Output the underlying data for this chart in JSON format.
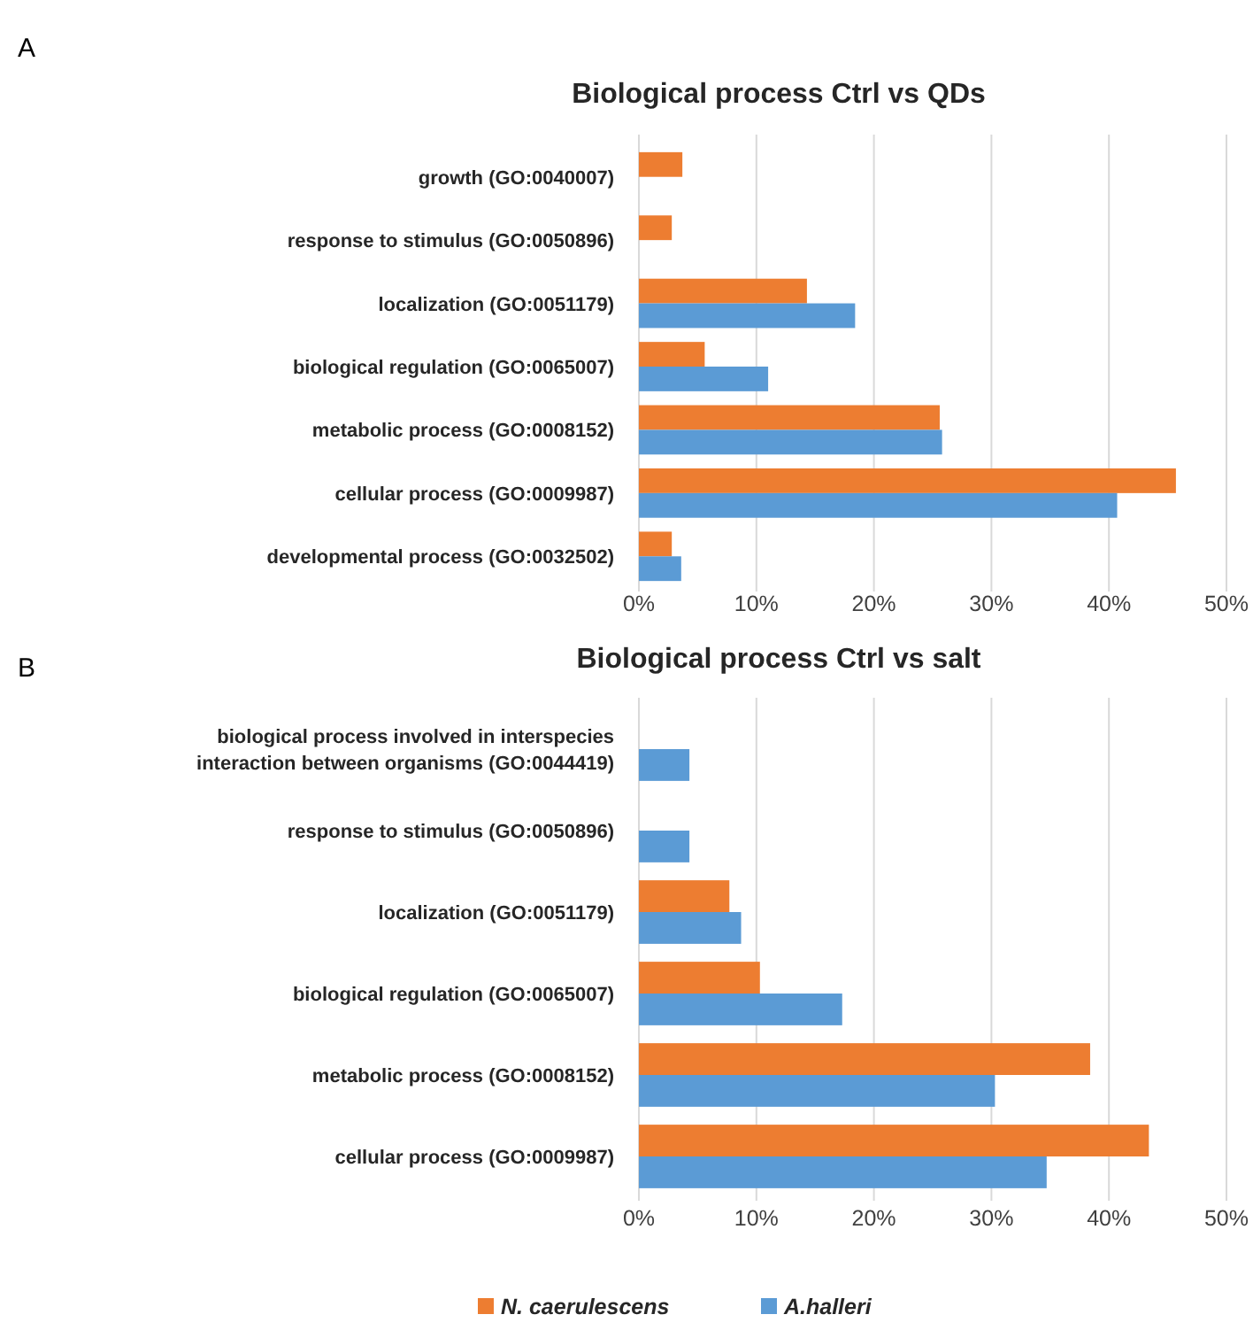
{
  "chart_data": [
    {
      "type": "bar",
      "orientation": "horizontal",
      "title": "Biological process Ctrl vs QDs",
      "annotations": [
        "A"
      ],
      "categories": [
        "growth (GO:0040007)",
        "response to stimulus (GO:0050896)",
        "localization (GO:0051179)",
        "biological regulation (GO:0065007)",
        "metabolic process (GO:0008152)",
        "cellular process (GO:0009987)",
        "developmental process (GO:0032502)"
      ],
      "series": [
        {
          "color": "#ed7d31",
          "values": [
            3.7,
            2.8,
            14.3,
            5.6,
            25.6,
            45.7,
            2.8
          ]
        },
        {
          "color": "#5b9bd5",
          "values": [
            null,
            null,
            18.4,
            11.0,
            25.8,
            40.7,
            3.6
          ]
        }
      ],
      "xlim": [
        0,
        50
      ],
      "xticks": [
        {
          "value": 0,
          "label": "0%"
        },
        {
          "value": 10,
          "label": "10%"
        },
        {
          "value": 20,
          "label": "20%"
        },
        {
          "value": 30,
          "label": "30%"
        },
        {
          "value": 40,
          "label": "40%"
        },
        {
          "value": 50,
          "label": "50%"
        }
      ],
      "grid": "x",
      "legend": false
    },
    {
      "type": "bar",
      "orientation": "horizontal",
      "title": "Biological process Ctrl vs salt",
      "annotations": [
        "B"
      ],
      "categories": [
        "biological process involved in interspecies interaction between organisms (GO:0044419)",
        "response to stimulus (GO:0050896)",
        "localization (GO:0051179)",
        "biological regulation (GO:0065007)",
        "metabolic process (GO:0008152)",
        "cellular process (GO:0009987)"
      ],
      "series": [
        {
          "name": "N. caerulescens",
          "color": "#ed7d31",
          "values": [
            null,
            null,
            7.7,
            10.3,
            38.4,
            43.4
          ]
        },
        {
          "name": "A.halleri",
          "color": "#5b9bd5",
          "values": [
            4.3,
            4.3,
            8.7,
            17.3,
            30.3,
            34.7
          ]
        }
      ],
      "xlim": [
        0,
        50
      ],
      "xticks": [
        {
          "value": 0,
          "label": "0%"
        },
        {
          "value": 10,
          "label": "10%"
        },
        {
          "value": 20,
          "label": "20%"
        },
        {
          "value": 30,
          "label": "30%"
        },
        {
          "value": 40,
          "label": "40%"
        },
        {
          "value": 50,
          "label": "50%"
        }
      ],
      "grid": "x",
      "legend": "bottom"
    }
  ]
}
